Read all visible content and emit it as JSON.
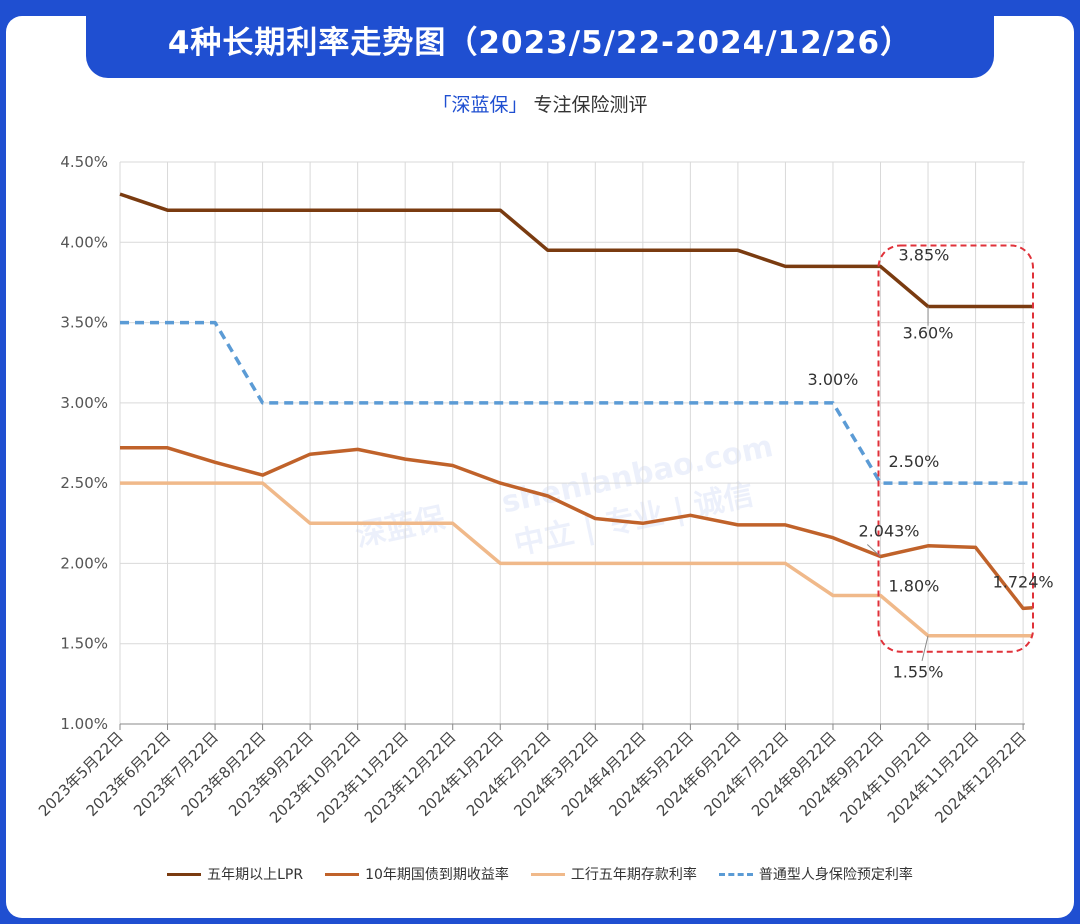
{
  "title": "4种长期利率走势图（2023/5/22-2024/12/26）",
  "subtitle": {
    "brand": "「深蓝保」",
    "text": "专注保险测评"
  },
  "watermark": {
    "brand": "深蓝保",
    "url": "shenlanbao.com",
    "slogan": "中立 | 专业 | 诚信"
  },
  "chart_data": {
    "type": "line",
    "categories": [
      "2023年5月22日",
      "2023年6月22日",
      "2023年7月22日",
      "2023年8月22日",
      "2023年9月22日",
      "2023年10月22日",
      "2023年11月22日",
      "2023年12月22日",
      "2024年1月22日",
      "2024年2月22日",
      "2024年3月22日",
      "2024年4月22日",
      "2024年5月22日",
      "2024年6月22日",
      "2024年7月22日",
      "2024年8月22日",
      "2024年9月22日",
      "2024年10月22日",
      "2024年11月22日",
      "2024年12月22日"
    ],
    "ylim": [
      1.0,
      4.5
    ],
    "yticks": [
      "1.00%",
      "1.50%",
      "2.00%",
      "2.50%",
      "3.00%",
      "3.50%",
      "4.00%",
      "4.50%"
    ],
    "grid": true,
    "legend_position": "bottom",
    "series": [
      {
        "name": "五年期以上LPR",
        "color": "#7a3b10",
        "dashed": false,
        "points": [
          [
            0,
            4.3
          ],
          [
            1,
            4.2
          ],
          [
            2,
            4.2
          ],
          [
            3,
            4.2
          ],
          [
            4,
            4.2
          ],
          [
            5,
            4.2
          ],
          [
            6,
            4.2
          ],
          [
            7,
            4.2
          ],
          [
            8,
            4.2
          ],
          [
            9,
            3.95
          ],
          [
            10,
            3.95
          ],
          [
            11,
            3.95
          ],
          [
            12,
            3.95
          ],
          [
            13,
            3.95
          ],
          [
            14,
            3.85
          ],
          [
            15,
            3.85
          ],
          [
            16,
            3.85
          ],
          [
            17,
            3.6
          ],
          [
            18,
            3.6
          ],
          [
            19,
            3.6
          ],
          [
            19.2,
            3.6
          ]
        ]
      },
      {
        "name": "10年期国债到期收益率",
        "color": "#c0622a",
        "dashed": false,
        "points": [
          [
            0,
            2.72
          ],
          [
            1,
            2.72
          ],
          [
            2,
            2.63
          ],
          [
            3,
            2.55
          ],
          [
            4,
            2.68
          ],
          [
            5,
            2.71
          ],
          [
            6,
            2.65
          ],
          [
            7,
            2.61
          ],
          [
            8,
            2.5
          ],
          [
            9,
            2.42
          ],
          [
            10,
            2.28
          ],
          [
            11,
            2.25
          ],
          [
            12,
            2.3
          ],
          [
            13,
            2.24
          ],
          [
            14,
            2.24
          ],
          [
            15,
            2.16
          ],
          [
            16,
            2.043
          ],
          [
            17,
            2.11
          ],
          [
            18,
            2.1
          ],
          [
            19,
            1.72
          ],
          [
            19.2,
            1.724
          ]
        ]
      },
      {
        "name": "工行五年期存款利率",
        "color": "#f0b98a",
        "dashed": false,
        "points": [
          [
            0,
            2.5
          ],
          [
            1,
            2.5
          ],
          [
            2,
            2.5
          ],
          [
            3,
            2.5
          ],
          [
            4,
            2.25
          ],
          [
            5,
            2.25
          ],
          [
            6,
            2.25
          ],
          [
            7,
            2.25
          ],
          [
            8,
            2.0
          ],
          [
            9,
            2.0
          ],
          [
            10,
            2.0
          ],
          [
            11,
            2.0
          ],
          [
            12,
            2.0
          ],
          [
            13,
            2.0
          ],
          [
            14,
            2.0
          ],
          [
            15,
            1.8
          ],
          [
            16,
            1.8
          ],
          [
            17,
            1.55
          ],
          [
            18,
            1.55
          ],
          [
            19,
            1.55
          ],
          [
            19.2,
            1.55
          ]
        ]
      },
      {
        "name": "普通型人身保险预定利率",
        "color": "#5b9bd5",
        "dashed": true,
        "points": [
          [
            0,
            3.5
          ],
          [
            1,
            3.5
          ],
          [
            2,
            3.5
          ],
          [
            3,
            3.0
          ],
          [
            4,
            3.0
          ],
          [
            5,
            3.0
          ],
          [
            6,
            3.0
          ],
          [
            7,
            3.0
          ],
          [
            8,
            3.0
          ],
          [
            9,
            3.0
          ],
          [
            10,
            3.0
          ],
          [
            11,
            3.0
          ],
          [
            12,
            3.0
          ],
          [
            13,
            3.0
          ],
          [
            14,
            3.0
          ],
          [
            15,
            3.0
          ],
          [
            16,
            2.5
          ],
          [
            17,
            2.5
          ],
          [
            18,
            2.5
          ],
          [
            19,
            2.5
          ],
          [
            19.2,
            2.5
          ]
        ]
      }
    ],
    "annotations": [
      {
        "text": "3.85%",
        "x": 16,
        "y": 3.85
      },
      {
        "text": "3.60%",
        "x": 17,
        "y": 3.6
      },
      {
        "text": "3.00%",
        "x": 15,
        "y": 3.0
      },
      {
        "text": "2.50%",
        "x": 16,
        "y": 2.5
      },
      {
        "text": "2.043%",
        "x": 16,
        "y": 2.043
      },
      {
        "text": "1.80%",
        "x": 16,
        "y": 1.8
      },
      {
        "text": "1.724%",
        "x": 19,
        "y": 1.724
      },
      {
        "text": "1.55%",
        "x": 17,
        "y": 1.55
      }
    ],
    "highlight_color": "#e0323a"
  }
}
